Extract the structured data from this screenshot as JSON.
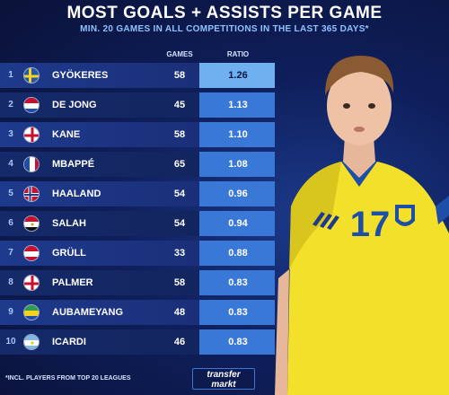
{
  "header": {
    "title": "MOST GOALS + ASSISTS PER GAME",
    "subtitle": "MIN. 20 GAMES IN ALL COMPETITIONS IN THE LAST 365 DAYS*"
  },
  "columns": {
    "games": "GAMES",
    "ratio": "RATIO"
  },
  "footnote": "*INCL. PLAYERS FROM TOP 20 LEAGUES",
  "brand": {
    "line1": "transfer",
    "line2": "markt"
  },
  "player_jersey_number": "17",
  "colors": {
    "background": "#0b1440",
    "row": "#1e3a8c",
    "ratio_cell": "#3a78d8",
    "ratio_top": "#6fb0f0",
    "jersey": "#f2e02a"
  },
  "chart_data": {
    "type": "table",
    "title": "MOST GOALS + ASSISTS PER GAME",
    "subtitle": "MIN. 20 GAMES IN ALL COMPETITIONS IN THE LAST 365 DAYS*",
    "columns": [
      "GAMES",
      "RATIO"
    ],
    "rows": [
      {
        "rank": "1",
        "player": "GYÖKERES",
        "flag": "sweden-flag-icon",
        "games": "58",
        "ratio": "1.26"
      },
      {
        "rank": "2",
        "player": "DE JONG",
        "flag": "netherlands-flag-icon",
        "games": "45",
        "ratio": "1.13"
      },
      {
        "rank": "3",
        "player": "KANE",
        "flag": "england-flag-icon",
        "games": "58",
        "ratio": "1.10"
      },
      {
        "rank": "4",
        "player": "MBAPPÉ",
        "flag": "france-flag-icon",
        "games": "65",
        "ratio": "1.08"
      },
      {
        "rank": "5",
        "player": "HAALAND",
        "flag": "norway-flag-icon",
        "games": "54",
        "ratio": "0.96"
      },
      {
        "rank": "6",
        "player": "SALAH",
        "flag": "egypt-flag-icon",
        "games": "54",
        "ratio": "0.94"
      },
      {
        "rank": "7",
        "player": "GRÜLL",
        "flag": "austria-flag-icon",
        "games": "33",
        "ratio": "0.88"
      },
      {
        "rank": "8",
        "player": "PALMER",
        "flag": "england-flag-icon",
        "games": "58",
        "ratio": "0.83"
      },
      {
        "rank": "9",
        "player": "AUBAMEYANG",
        "flag": "gabon-flag-icon",
        "games": "48",
        "ratio": "0.83"
      },
      {
        "rank": "10",
        "player": "ICARDI",
        "flag": "argentina-flag-icon",
        "games": "46",
        "ratio": "0.83"
      }
    ]
  }
}
